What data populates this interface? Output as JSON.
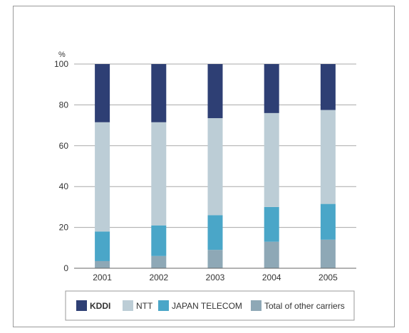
{
  "chart_data": {
    "type": "bar",
    "stacked": true,
    "unit": "%",
    "categories": [
      "2001",
      "2002",
      "2003",
      "2004",
      "2005"
    ],
    "series": [
      {
        "name": "Total of other carriers",
        "color": "#8ea8b6",
        "values": [
          3.5,
          6,
          9,
          13,
          14
        ]
      },
      {
        "name": "JAPAN TELECOM",
        "color": "#4aa6c8",
        "values": [
          14.5,
          15,
          17,
          17,
          17.5
        ]
      },
      {
        "name": "NTT",
        "color": "#bccdd6",
        "values": [
          53.5,
          50.5,
          47.5,
          46,
          46
        ]
      },
      {
        "name": "KDDI",
        "color": "#2e3f74",
        "values": [
          28.5,
          28.5,
          26.5,
          24,
          22.5
        ]
      }
    ],
    "ylim": [
      0,
      100
    ],
    "yticks": [
      0,
      20,
      40,
      60,
      80,
      100
    ],
    "grid": true,
    "legend": {
      "position": "bottom",
      "order": [
        "KDDI",
        "NTT",
        "JAPAN TELECOM",
        "Total of other carriers"
      ]
    }
  }
}
